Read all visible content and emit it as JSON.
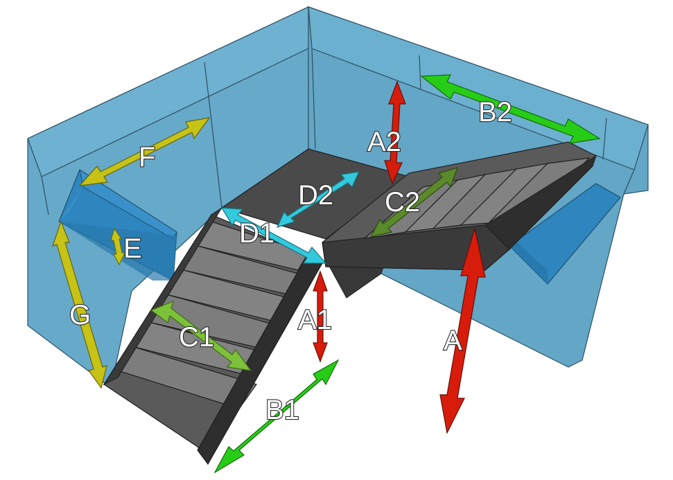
{
  "labels": {
    "A": "A",
    "A1": "A1",
    "A2": "A2",
    "B1": "B1",
    "B2": "B2",
    "C1": "C1",
    "C2": "C2",
    "D1": "D1",
    "D2": "D2",
    "E": "E",
    "F": "F",
    "G": "G"
  },
  "colors": {
    "wall": "#67a9c9",
    "wall_dark": "#5a9dbd",
    "block": "#2f86bf",
    "stair_tread": "#7d7d7d",
    "stair_riser": "#5a5a5a",
    "stair_dark": "#3a3a3a",
    "arrow_red": "#d71c0c",
    "arrow_green": "#27cc17",
    "arrow_lightgreen": "#7dc03a",
    "arrow_darkgreen": "#5a8a2a",
    "arrow_yellow": "#c7c316",
    "arrow_cyan": "#33c9dd"
  }
}
